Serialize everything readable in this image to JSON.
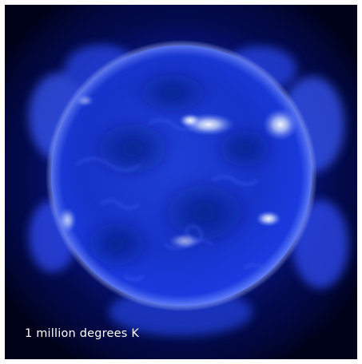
{
  "caption": "1 million degrees K",
  "colors": {
    "space": "#00021a",
    "corona": "#1a3cff",
    "disk": "#1633c8",
    "highlight": "#d7e4ff",
    "caption": "#ffffff"
  }
}
